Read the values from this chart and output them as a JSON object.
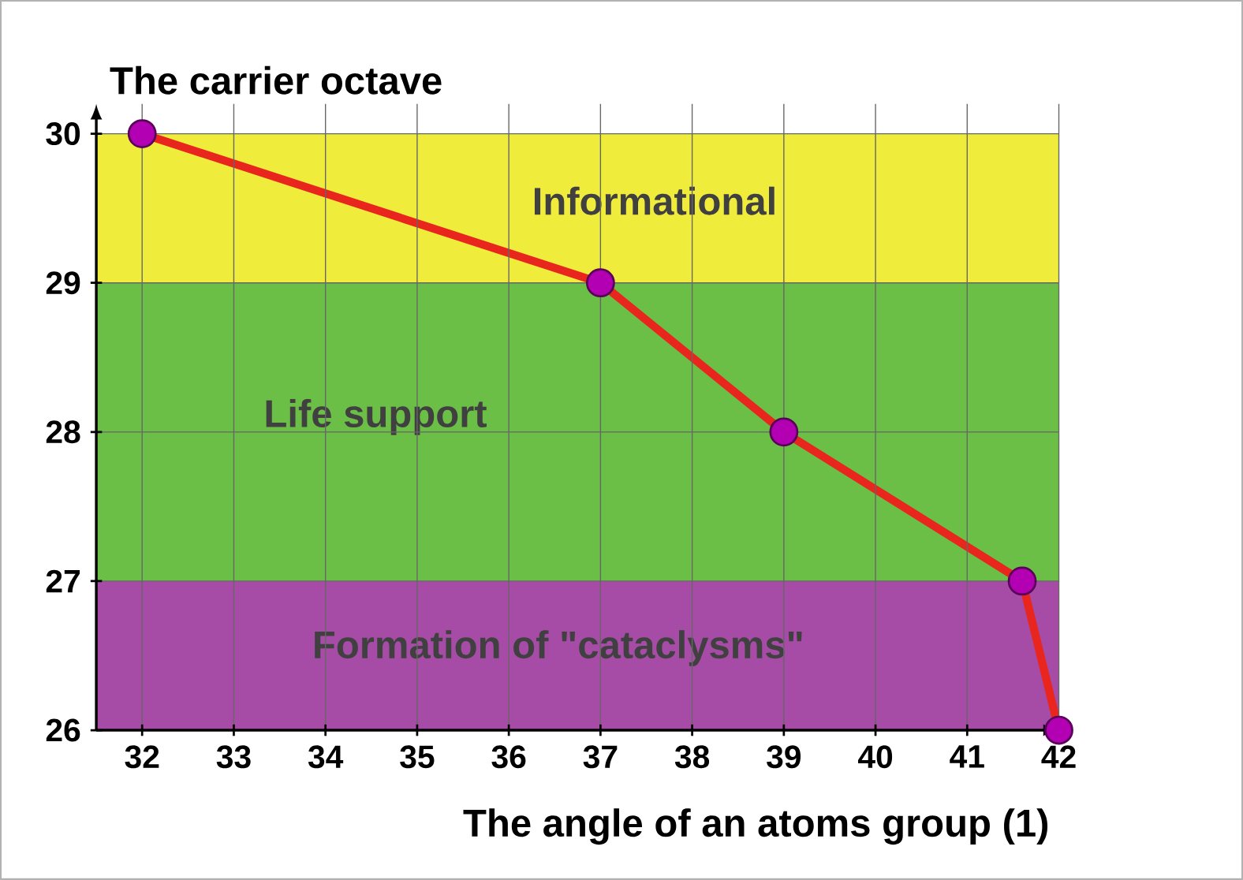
{
  "chart_data": {
    "type": "line",
    "xlabel": "The angle of an atoms group (1)",
    "ylabel": "The carrier octave",
    "x": [
      32,
      37,
      39,
      41.6,
      42
    ],
    "series": [
      {
        "color": "#e8261e",
        "values": [
          30,
          29,
          28,
          27,
          26
        ]
      }
    ],
    "marker": "circle",
    "line_style": "solid",
    "grid": true,
    "xlim": [
      31.5,
      42
    ],
    "ylim": [
      26,
      30.2
    ],
    "xticks": [
      32,
      33,
      34,
      35,
      36,
      37,
      38,
      39,
      40,
      41,
      42
    ],
    "yticks": [
      26,
      27,
      28,
      29,
      30
    ],
    "bands": [
      {
        "axis": "y",
        "from": 29,
        "to": 30,
        "label": "Informational",
        "color": "#f0ec3c"
      },
      {
        "axis": "y",
        "from": 27,
        "to": 29,
        "label": "Life support",
        "color": "#6cbf46"
      },
      {
        "axis": "y",
        "from": 26,
        "to": 27,
        "label": "Formation of \"cataclysms\"",
        "color": "#a64ca6"
      }
    ]
  }
}
